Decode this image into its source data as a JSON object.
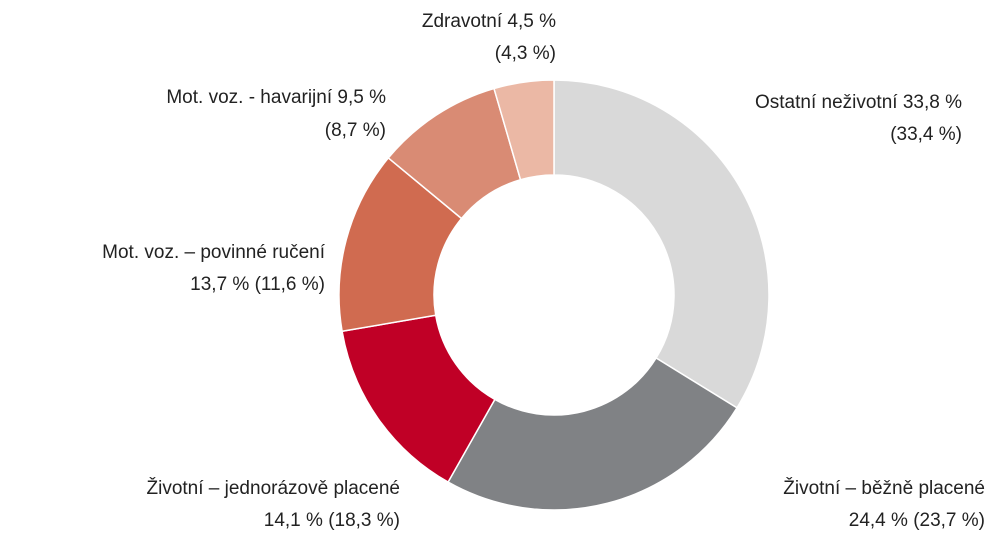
{
  "chart_data": {
    "type": "donut",
    "categories": [
      "Ostatní neživotní",
      "Životní – běžně placené",
      "Životní – jednorázově placené",
      "Mot. voz. – povinné ručení",
      "Mot. voz. - havarijní",
      "Zdravotní"
    ],
    "values": [
      33.8,
      24.4,
      14.1,
      13.7,
      9.5,
      4.5
    ],
    "value_labels": [
      "33,8 %",
      "24,4 %",
      "14,1 %",
      "13,7 %",
      "9,5 %",
      "4,5 %"
    ],
    "prior_labels": [
      "(33,4 %)",
      "(23,7 %)",
      "(18,3 %)",
      "(11,6 %)",
      "(8,7 %)",
      "(4,3 %)"
    ],
    "colors": [
      "#d9d9d9",
      "#808285",
      "#c00026",
      "#d06b50",
      "#d98b74",
      "#ebb8a5"
    ]
  }
}
